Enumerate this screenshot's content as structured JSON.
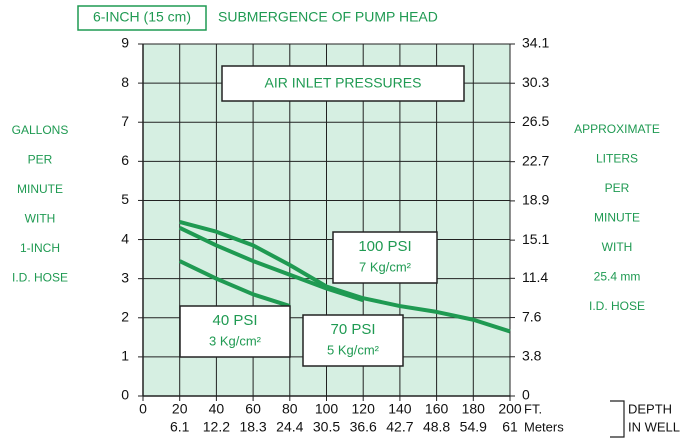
{
  "chart_data": {
    "type": "line",
    "title": "SUBMERGENCE OF PUMP HEAD",
    "subtitle": "6-INCH (15 cm)",
    "annotation": "AIR INLET PRESSURES",
    "ylabel_lines": [
      "GALLONS",
      "PER",
      "MINUTE",
      "WITH",
      "1-INCH",
      "I.D. HOSE"
    ],
    "y2label_lines": [
      "APPROXIMATE",
      "LITERS",
      "PER",
      "MINUTE",
      "WITH",
      "25.4 mm",
      "I.D. HOSE"
    ],
    "xlabel": "FT.",
    "x2label": "Meters",
    "depth_label_lines": [
      "DEPTH",
      "IN WELL"
    ],
    "xlim": [
      0,
      200
    ],
    "xticks": [
      0,
      20,
      40,
      60,
      80,
      100,
      120,
      140,
      160,
      180,
      200
    ],
    "x2lim": [
      0,
      61
    ],
    "x2ticks": [
      6.1,
      12.2,
      18.3,
      24.4,
      30.5,
      36.6,
      42.7,
      48.8,
      54.9,
      61
    ],
    "ylim": [
      0,
      9
    ],
    "yticks": [
      0,
      1,
      2,
      3,
      4,
      5,
      6,
      7,
      8,
      9
    ],
    "y2lim": [
      0,
      34.1
    ],
    "y2ticks": [
      0,
      3.8,
      7.6,
      11.4,
      15.1,
      18.9,
      22.7,
      26.5,
      30.3,
      34.1
    ],
    "grid": true,
    "series": [
      {
        "name": "100 PSI",
        "unit": "7 Kg/cm²",
        "color": "#1f9a52",
        "x": [
          20,
          40,
          60,
          80,
          100,
          120,
          140,
          160,
          180,
          200
        ],
        "values": [
          4.45,
          4.2,
          3.85,
          3.35,
          2.8,
          2.5,
          2.3,
          2.15,
          1.95,
          1.65
        ]
      },
      {
        "name": "70 PSI",
        "unit": "5 Kg/cm²",
        "color": "#1f9a52",
        "x": [
          20,
          40,
          60,
          80,
          100,
          120
        ],
        "values": [
          4.3,
          3.85,
          3.45,
          3.1,
          2.75,
          2.45
        ]
      },
      {
        "name": "40 PSI",
        "unit": "3 Kg/cm²",
        "color": "#1f9a52",
        "x": [
          20,
          40,
          60,
          80
        ],
        "values": [
          3.45,
          3.0,
          2.6,
          2.3
        ]
      }
    ]
  }
}
